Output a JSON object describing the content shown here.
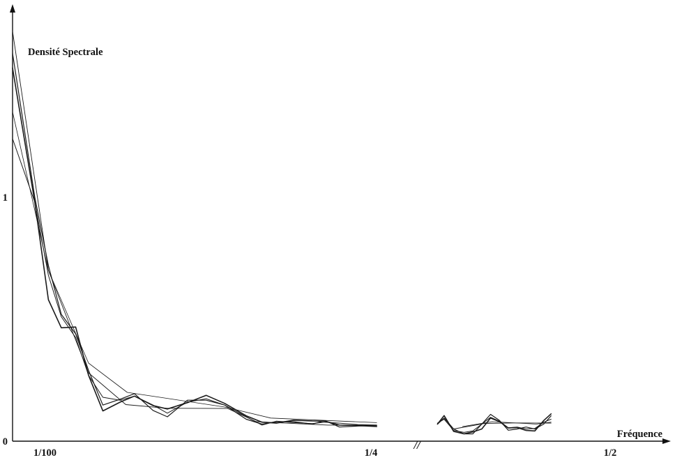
{
  "chart_data": {
    "type": "line",
    "title": "",
    "ylabel": "Densité Spectrale",
    "xlabel": "Fréquence",
    "x_ticks": [
      {
        "value": 0.01,
        "label": "1/100"
      },
      {
        "value": 0.25,
        "label": "1/4"
      },
      {
        "value": 0.5,
        "label": "1/2"
      }
    ],
    "y_ticks": [
      {
        "value": 0,
        "label": "0"
      },
      {
        "value": 1,
        "label": "1"
      }
    ],
    "axis_break_marker": "//",
    "xlim": [
      0.0,
      0.54
    ],
    "ylim": [
      0,
      1.75
    ],
    "grid": false,
    "legend": "none",
    "series": [
      {
        "stroke_width": 1.6,
        "x": [
          0.0,
          0.0155,
          0.025,
          0.034,
          0.044,
          0.053,
          0.063,
          0.075,
          0.085,
          0.098,
          0.108,
          0.122,
          0.135,
          0.148,
          0.163,
          0.174,
          0.184,
          0.196,
          0.209,
          0.218,
          0.228,
          0.241,
          0.254,
          0.266,
          0.275,
          0.288,
          0.302,
          0.314,
          0.326,
          0.338,
          0.35,
          0.362,
          0.374,
          0.386,
          0.398,
          0.41,
          0.42
        ],
        "y": [
          1.53,
          0.98,
          0.58,
          0.465,
          0.468,
          0.27,
          0.124,
          0.16,
          0.185,
          0.146,
          0.132,
          0.158,
          0.188,
          0.155,
          0.104,
          0.078,
          0.074,
          0.086,
          0.083,
          0.082,
          0.066,
          0.064,
          0.06,
          0.07,
          0.105,
          0.04,
          0.03,
          0.038,
          0.05,
          0.095,
          0.08,
          0.054,
          0.056,
          0.044,
          0.042,
          0.085,
          0.112
        ]
      },
      {
        "stroke_width": 1.2,
        "x": [
          0.0,
          0.0155,
          0.025,
          0.034,
          0.044,
          0.053,
          0.063,
          0.075,
          0.085,
          0.098,
          0.108,
          0.122,
          0.135,
          0.148,
          0.163,
          0.174,
          0.184,
          0.196,
          0.209,
          0.218,
          0.228,
          0.241,
          0.254,
          0.266,
          0.275,
          0.288,
          0.302,
          0.314,
          0.326,
          0.338,
          0.35,
          0.362,
          0.374,
          0.386,
          0.398,
          0.41,
          0.42
        ],
        "y": [
          1.59,
          1.0,
          0.72,
          0.52,
          0.44,
          0.29,
          0.148,
          0.172,
          0.195,
          0.126,
          0.1,
          0.168,
          0.168,
          0.148,
          0.09,
          0.07,
          0.08,
          0.08,
          0.07,
          0.084,
          0.058,
          0.062,
          0.064,
          0.07,
          0.095,
          0.05,
          0.03,
          0.03,
          0.07,
          0.11,
          0.085,
          0.045,
          0.05,
          0.058,
          0.05,
          0.07,
          0.104
        ]
      },
      {
        "stroke_width": 1.0,
        "x": [
          0.0,
          0.0155,
          0.025,
          0.034,
          0.044,
          0.053,
          0.063,
          0.075,
          0.085,
          0.098,
          0.108,
          0.122,
          0.135,
          0.148,
          0.163,
          0.174,
          0.184,
          0.196,
          0.209,
          0.218,
          0.228,
          0.241,
          0.254,
          0.266,
          0.275,
          0.288,
          0.302,
          0.314,
          0.326,
          0.338,
          0.35,
          0.362,
          0.374,
          0.386,
          0.398,
          0.41,
          0.42
        ],
        "y": [
          1.24,
          0.98,
          0.68,
          0.51,
          0.425,
          0.27,
          0.18,
          0.168,
          0.185,
          0.148,
          0.115,
          0.16,
          0.174,
          0.148,
          0.1,
          0.066,
          0.082,
          0.076,
          0.072,
          0.078,
          0.074,
          0.068,
          0.066,
          0.074,
          0.09,
          0.044,
          0.036,
          0.042,
          0.07,
          0.098,
          0.082,
          0.055,
          0.058,
          0.05,
          0.052,
          0.078,
          0.09
        ]
      },
      {
        "stroke_width": 0.9,
        "x": [
          0.0,
          0.025,
          0.053,
          0.079,
          0.108,
          0.15,
          0.17,
          0.22,
          0.244,
          0.254,
          0.288,
          0.33,
          0.372,
          0.42
        ],
        "y": [
          1.68,
          0.7,
          0.28,
          0.15,
          0.135,
          0.134,
          0.08,
          0.066,
          0.066,
          0.064,
          0.05,
          0.073,
          0.075,
          0.074
        ]
      },
      {
        "stroke_width": 0.8,
        "x": [
          0.0,
          0.015,
          0.025,
          0.053,
          0.08,
          0.148,
          0.18,
          0.254,
          0.3,
          0.34,
          0.4,
          0.42
        ],
        "y": [
          1.35,
          0.96,
          0.7,
          0.32,
          0.2,
          0.14,
          0.095,
          0.076,
          0.06,
          0.08,
          0.07,
          0.078
        ]
      }
    ]
  }
}
